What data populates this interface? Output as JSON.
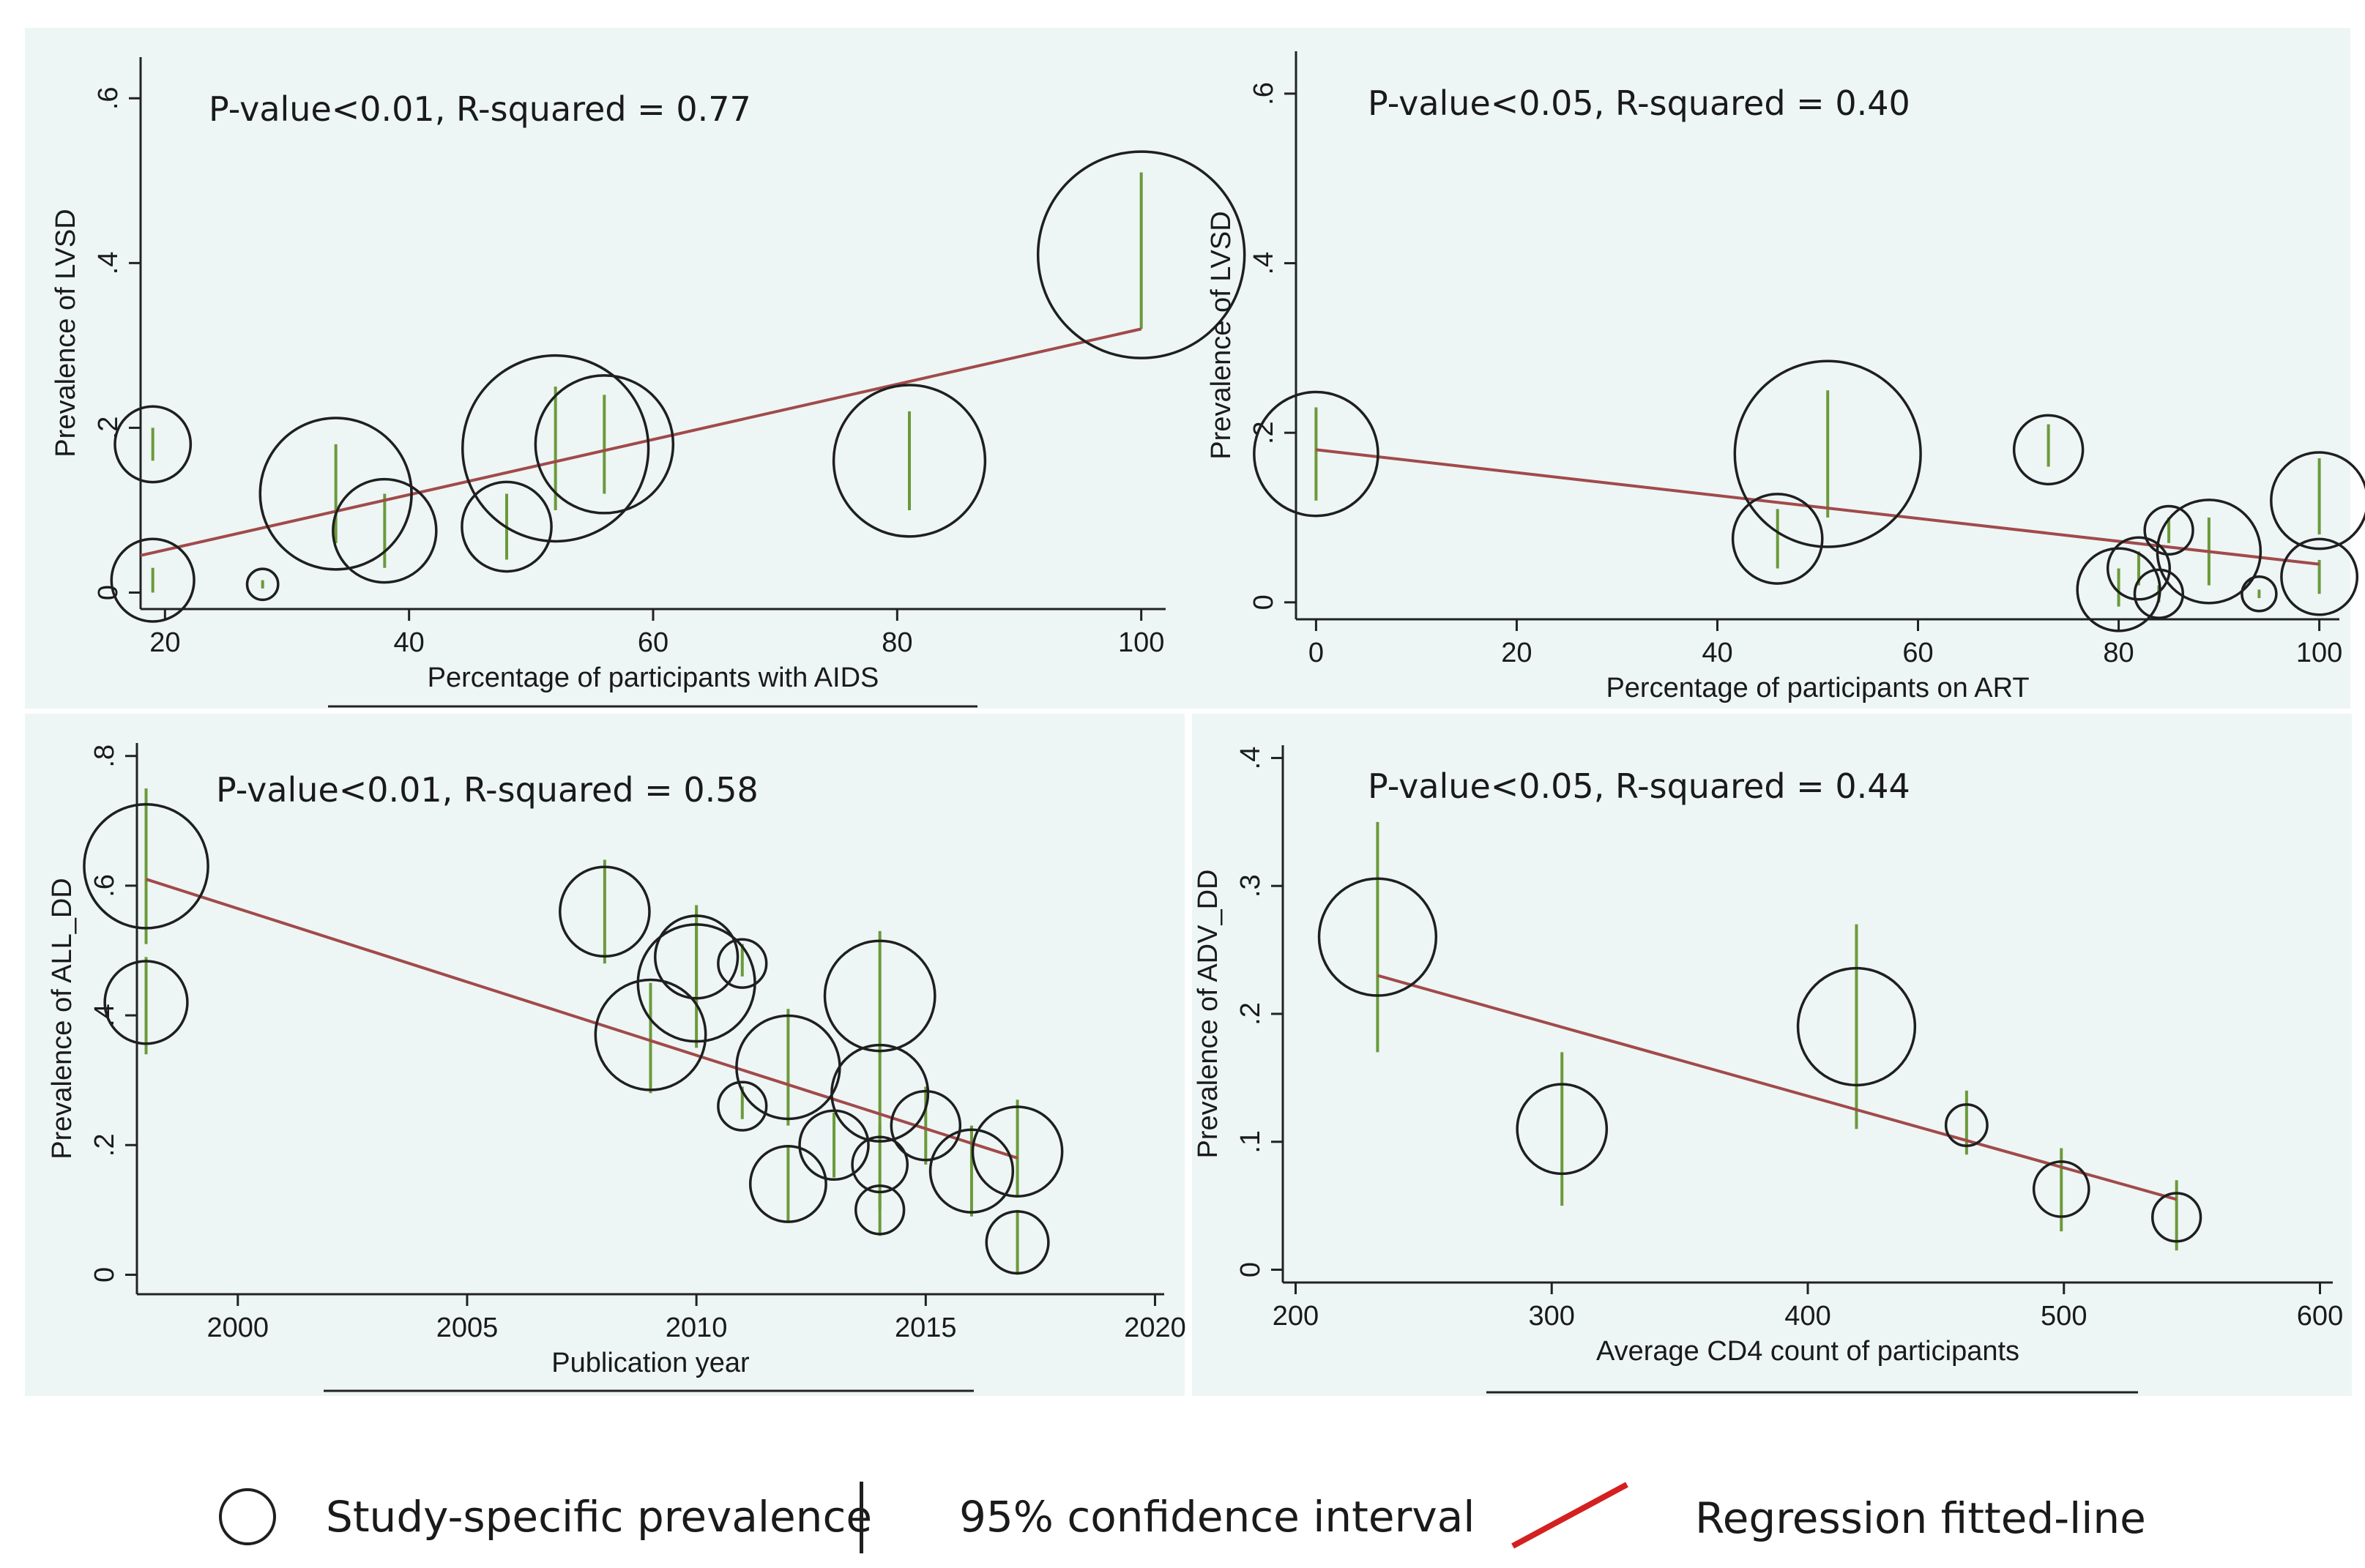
{
  "chart_data": [
    {
      "type": "scatter",
      "annotation": "P-value<0.01, R-squared = 0.77",
      "xlabel": "Percentage of participants with AIDS",
      "ylabel": "Prevalence of LVSD",
      "xlim": [
        18,
        102
      ],
      "ylim": [
        -0.02,
        0.65
      ],
      "xticks": [
        20,
        40,
        60,
        80,
        100
      ],
      "xtick_labels": [
        "20",
        "40",
        "60",
        "80",
        "100"
      ],
      "yticks": [
        0,
        0.2,
        0.4,
        0.6
      ],
      "ytick_labels": [
        "0",
        ".2",
        ".4",
        ".6"
      ],
      "points": [
        {
          "x": 19,
          "y": 0.18,
          "weight": 2.2,
          "ci": [
            0.16,
            0.2
          ]
        },
        {
          "x": 19,
          "y": 0.015,
          "weight": 2.4,
          "ci": [
            0,
            0.03
          ]
        },
        {
          "x": 28,
          "y": 0.01,
          "weight": 0.9,
          "ci": [
            0.005,
            0.015
          ]
        },
        {
          "x": 34,
          "y": 0.12,
          "weight": 4.4,
          "ci": [
            0.06,
            0.18
          ]
        },
        {
          "x": 38,
          "y": 0.075,
          "weight": 3.0,
          "ci": [
            0.03,
            0.12
          ]
        },
        {
          "x": 48,
          "y": 0.08,
          "weight": 2.6,
          "ci": [
            0.04,
            0.12
          ]
        },
        {
          "x": 52,
          "y": 0.175,
          "weight": 5.4,
          "ci": [
            0.1,
            0.25
          ]
        },
        {
          "x": 56,
          "y": 0.18,
          "weight": 4.0,
          "ci": [
            0.12,
            0.24
          ]
        },
        {
          "x": 81,
          "y": 0.16,
          "weight": 4.4,
          "ci": [
            0.1,
            0.22
          ]
        },
        {
          "x": 100,
          "y": 0.41,
          "weight": 6.0,
          "ci": [
            0.32,
            0.51
          ]
        }
      ],
      "fit_line": {
        "x": [
          18,
          100
        ],
        "y": [
          0.045,
          0.32
        ]
      }
    },
    {
      "type": "scatter",
      "annotation": "P-value<0.05, R-squared = 0.40",
      "xlabel": "Percentage of participants on ART",
      "ylabel": "Prevalence of LVSD",
      "xlim": [
        -2,
        102
      ],
      "ylim": [
        -0.02,
        0.65
      ],
      "xticks": [
        0,
        20,
        40,
        60,
        80,
        100
      ],
      "xtick_labels": [
        "0",
        "20",
        "40",
        "60",
        "80",
        "100"
      ],
      "yticks": [
        0,
        0.2,
        0.4,
        0.6
      ],
      "ytick_labels": [
        "0",
        ".2",
        ".4",
        ".6"
      ],
      "points": [
        {
          "x": 0,
          "y": 0.175,
          "weight": 3.6,
          "ci": [
            0.12,
            0.23
          ]
        },
        {
          "x": 46,
          "y": 0.075,
          "weight": 2.6,
          "ci": [
            0.04,
            0.11
          ]
        },
        {
          "x": 51,
          "y": 0.175,
          "weight": 5.4,
          "ci": [
            0.1,
            0.25
          ]
        },
        {
          "x": 73,
          "y": 0.18,
          "weight": 2.0,
          "ci": [
            0.16,
            0.21
          ]
        },
        {
          "x": 80,
          "y": 0.015,
          "weight": 2.4,
          "ci": [
            -0.005,
            0.04
          ]
        },
        {
          "x": 82,
          "y": 0.04,
          "weight": 1.8,
          "ci": [
            0.02,
            0.06
          ]
        },
        {
          "x": 84,
          "y": 0.01,
          "weight": 1.4,
          "ci": [
            0,
            0.02
          ]
        },
        {
          "x": 85,
          "y": 0.085,
          "weight": 1.4,
          "ci": [
            0.07,
            0.1
          ]
        },
        {
          "x": 89,
          "y": 0.06,
          "weight": 3.0,
          "ci": [
            0.02,
            0.1
          ]
        },
        {
          "x": 94,
          "y": 0.01,
          "weight": 1.0,
          "ci": [
            0.005,
            0.015
          ]
        },
        {
          "x": 100,
          "y": 0.12,
          "weight": 2.8,
          "ci": [
            0.08,
            0.17
          ]
        },
        {
          "x": 100,
          "y": 0.03,
          "weight": 2.2,
          "ci": [
            0.01,
            0.05
          ]
        }
      ],
      "fit_line": {
        "x": [
          0,
          100
        ],
        "y": [
          0.18,
          0.045
        ]
      }
    },
    {
      "type": "scatter",
      "annotation": "P-value<0.01, R-squared = 0.58",
      "xlabel": "Publication year",
      "ylabel": "Prevalence of ALL_DD",
      "xlim": [
        1997.8,
        2020.2
      ],
      "ylim": [
        -0.03,
        0.82
      ],
      "xticks": [
        2000,
        2005,
        2010,
        2015,
        2020
      ],
      "xtick_labels": [
        "2000",
        "2005",
        "2010",
        "2015",
        "2020"
      ],
      "yticks": [
        0,
        0.2,
        0.4,
        0.6,
        0.8
      ],
      "ytick_labels": [
        "0",
        ".2",
        ".4",
        ".6",
        ".8"
      ],
      "points": [
        {
          "x": 1998,
          "y": 0.63,
          "weight": 3.6,
          "ci": [
            0.51,
            0.75
          ]
        },
        {
          "x": 1998,
          "y": 0.42,
          "weight": 2.4,
          "ci": [
            0.34,
            0.49
          ]
        },
        {
          "x": 2008,
          "y": 0.56,
          "weight": 2.6,
          "ci": [
            0.48,
            0.64
          ]
        },
        {
          "x": 2009,
          "y": 0.37,
          "weight": 3.2,
          "ci": [
            0.28,
            0.45
          ]
        },
        {
          "x": 2010,
          "y": 0.49,
          "weight": 2.4,
          "ci": [
            0.42,
            0.57
          ]
        },
        {
          "x": 2010,
          "y": 0.45,
          "weight": 3.4,
          "ci": [
            0.35,
            0.56
          ]
        },
        {
          "x": 2011,
          "y": 0.48,
          "weight": 1.4,
          "ci": [
            0.46,
            0.51
          ]
        },
        {
          "x": 2011,
          "y": 0.26,
          "weight": 1.4,
          "ci": [
            0.24,
            0.29
          ]
        },
        {
          "x": 2012,
          "y": 0.32,
          "weight": 3.0,
          "ci": [
            0.23,
            0.41
          ]
        },
        {
          "x": 2012,
          "y": 0.14,
          "weight": 2.2,
          "ci": [
            0.08,
            0.2
          ]
        },
        {
          "x": 2013,
          "y": 0.2,
          "weight": 2.0,
          "ci": [
            0.15,
            0.25
          ]
        },
        {
          "x": 2014,
          "y": 0.43,
          "weight": 3.2,
          "ci": [
            0.34,
            0.53
          ]
        },
        {
          "x": 2014,
          "y": 0.28,
          "weight": 2.8,
          "ci": [
            0.21,
            0.35
          ]
        },
        {
          "x": 2014,
          "y": 0.17,
          "weight": 1.6,
          "ci": [
            0.1,
            0.23
          ]
        },
        {
          "x": 2014,
          "y": 0.1,
          "weight": 1.4,
          "ci": [
            0.06,
            0.13
          ]
        },
        {
          "x": 2015,
          "y": 0.23,
          "weight": 2.0,
          "ci": [
            0.17,
            0.29
          ]
        },
        {
          "x": 2016,
          "y": 0.16,
          "weight": 2.4,
          "ci": [
            0.09,
            0.23
          ]
        },
        {
          "x": 2017,
          "y": 0.19,
          "weight": 2.6,
          "ci": [
            0.12,
            0.27
          ]
        },
        {
          "x": 2017,
          "y": 0.05,
          "weight": 1.8,
          "ci": [
            0,
            0.1
          ]
        }
      ],
      "fit_line": {
        "x": [
          1998,
          2017
        ],
        "y": [
          0.61,
          0.18
        ]
      }
    },
    {
      "type": "scatter",
      "annotation": "P-value<0.05, R-squared = 0.44",
      "xlabel": "Average CD4 count of participants",
      "ylabel": "Prevalence of ADV_DD",
      "xlim": [
        195,
        605
      ],
      "ylim": [
        -0.01,
        0.41
      ],
      "xticks": [
        200,
        300,
        400,
        500,
        600
      ],
      "xtick_labels": [
        "200",
        "300",
        "400",
        "500",
        "600"
      ],
      "yticks": [
        0,
        0.1,
        0.2,
        0.3,
        0.4
      ],
      "ytick_labels": [
        "0",
        ".1",
        ".2",
        ".3",
        ".4"
      ],
      "points": [
        {
          "x": 232,
          "y": 0.26,
          "weight": 3.4,
          "ci": [
            0.17,
            0.35
          ]
        },
        {
          "x": 304,
          "y": 0.11,
          "weight": 2.6,
          "ci": [
            0.05,
            0.17
          ]
        },
        {
          "x": 419,
          "y": 0.19,
          "weight": 3.4,
          "ci": [
            0.11,
            0.27
          ]
        },
        {
          "x": 462,
          "y": 0.113,
          "weight": 1.2,
          "ci": [
            0.09,
            0.14
          ]
        },
        {
          "x": 499,
          "y": 0.063,
          "weight": 1.6,
          "ci": [
            0.03,
            0.095
          ]
        },
        {
          "x": 544,
          "y": 0.041,
          "weight": 1.4,
          "ci": [
            0.015,
            0.07
          ]
        }
      ],
      "fit_line": {
        "x": [
          232,
          544
        ],
        "y": [
          0.23,
          0.055
        ]
      }
    }
  ],
  "legend": {
    "prevalence_label": "Study-specific prevalence",
    "ci_label": "95% confidence interval",
    "fit_label": "Regression fitted-line"
  },
  "colors": {
    "panel_bg": "#eef5f5",
    "circle": "#1f1f1f",
    "ci_line": "#6a9a3a",
    "fit_line": "#a14a4a",
    "legend_fit": "#d42020"
  }
}
